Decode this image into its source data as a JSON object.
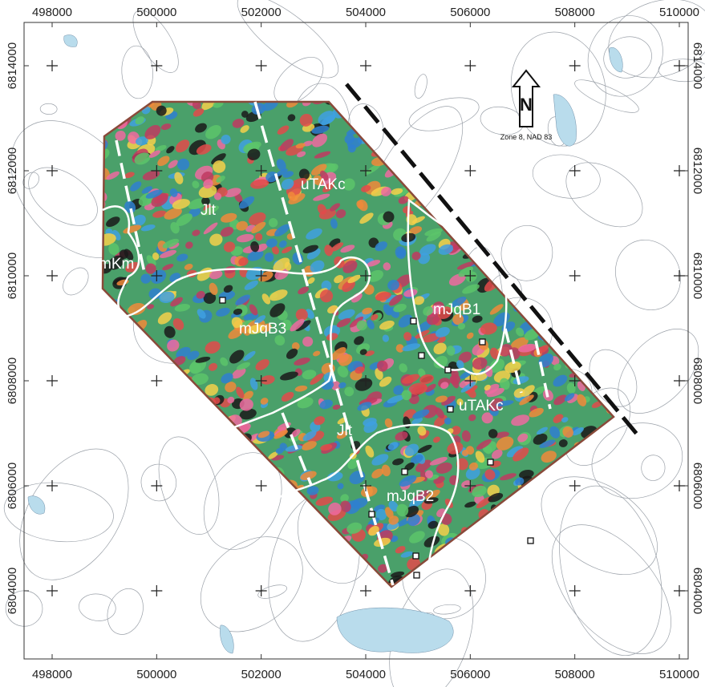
{
  "map": {
    "x_ticks": [
      498000,
      500000,
      502000,
      504000,
      506000,
      508000,
      510000
    ],
    "y_ticks": [
      6814000,
      6812000,
      6810000,
      6808000,
      6806000,
      6804000
    ],
    "north": "N",
    "projection": "Zone 8, NAD 83",
    "units": [
      "Jlt",
      "uTAKc",
      "mKm",
      "mJqB3",
      "mJqB1",
      "uTAKc",
      "Jlt",
      "mJqB2"
    ]
  }
}
